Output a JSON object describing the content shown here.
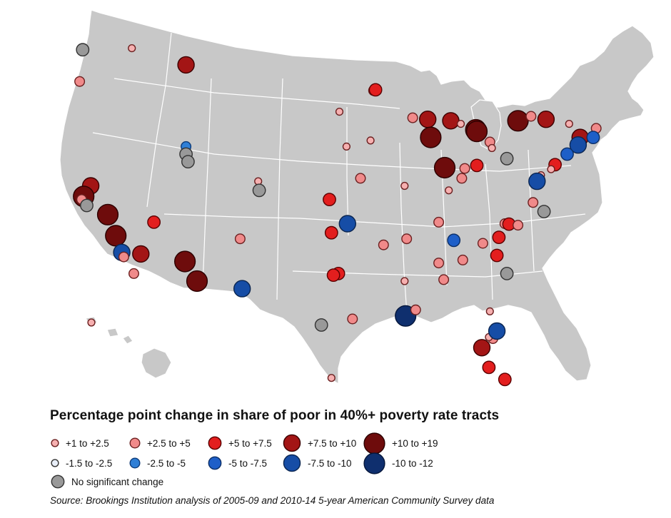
{
  "legend": {
    "title": "Percentage point change in share of poor in 40%+ poverty rate tracts",
    "items": [
      {
        "label": "+1 to +2.5",
        "fill": "#f6b0b0",
        "stroke": "#6b2020",
        "size": 2
      },
      {
        "label": "+2.5 to +5",
        "fill": "#f08a8a",
        "stroke": "#6b2020",
        "size": 4
      },
      {
        "label": "+5 to +7.5",
        "fill": "#e31e1e",
        "stroke": "#5a0000",
        "size": 6
      },
      {
        "label": "+7.5 to +10",
        "fill": "#a31515",
        "stroke": "#3a0000",
        "size": 9
      },
      {
        "label": "+10 to +19",
        "fill": "#6e0c0c",
        "stroke": "#2a0000",
        "size": 12
      },
      {
        "label": "-1.5 to -2.5",
        "fill": "#e8eef8",
        "stroke": "#333333",
        "size": 2
      },
      {
        "label": "-2.5 to -5",
        "fill": "#2f7fd6",
        "stroke": "#0c3b7a",
        "size": 4
      },
      {
        "label": "-5 to -7.5",
        "fill": "#1e5fc8",
        "stroke": "#0b2e66",
        "size": 6
      },
      {
        "label": "-7.5 to -10",
        "fill": "#164da6",
        "stroke": "#0a2550",
        "size": 9
      },
      {
        "label": "-10 to -12",
        "fill": "#0f2f6e",
        "stroke": "#05163a",
        "size": 12
      },
      {
        "label": "No significant change",
        "fill": "#999999",
        "stroke": "#333333",
        "size": 6
      }
    ]
  },
  "source": "Source: Brookings Institution analysis of 2005-09 and 2010-14 5-year American Community Survey data",
  "map": {
    "land_color": "#c8c8c8",
    "border_color": "#ffffff",
    "circles": [
      {
        "lon": -122.3,
        "lat": 47.6,
        "cat": 10
      },
      {
        "lon": -122.6,
        "lat": 45.5,
        "cat": 1
      },
      {
        "lon": -117.4,
        "lat": 47.7,
        "cat": 0
      },
      {
        "lon": -112.0,
        "lat": 46.6,
        "cat": 3
      },
      {
        "lon": -112.0,
        "lat": 41.2,
        "cat": 6
      },
      {
        "lon": -112.0,
        "lat": 40.7,
        "cat": 10
      },
      {
        "lon": -111.8,
        "lat": 40.2,
        "cat": 10
      },
      {
        "lon": -121.5,
        "lat": 38.6,
        "cat": 3
      },
      {
        "lon": -122.2,
        "lat": 37.9,
        "cat": 4
      },
      {
        "lon": -122.4,
        "lat": 37.7,
        "cat": 1
      },
      {
        "lon": -121.9,
        "lat": 37.3,
        "cat": 10
      },
      {
        "lon": -119.8,
        "lat": 36.7,
        "cat": 4
      },
      {
        "lon": -119.0,
        "lat": 35.3,
        "cat": 4
      },
      {
        "lon": -118.4,
        "lat": 34.2,
        "cat": 8
      },
      {
        "lon": -118.2,
        "lat": 33.9,
        "cat": 1
      },
      {
        "lon": -117.2,
        "lat": 32.8,
        "cat": 1
      },
      {
        "lon": -116.5,
        "lat": 34.1,
        "cat": 3
      },
      {
        "lon": -115.2,
        "lat": 36.2,
        "cat": 2
      },
      {
        "lon": -112.1,
        "lat": 33.6,
        "cat": 4
      },
      {
        "lon": -110.9,
        "lat": 32.3,
        "cat": 4
      },
      {
        "lon": -106.6,
        "lat": 35.1,
        "cat": 1
      },
      {
        "lon": -106.4,
        "lat": 31.8,
        "cat": 8
      },
      {
        "lon": -104.8,
        "lat": 38.9,
        "cat": 0
      },
      {
        "lon": -104.7,
        "lat": 38.3,
        "cat": 10
      },
      {
        "lon": -97.7,
        "lat": 37.7,
        "cat": 2
      },
      {
        "lon": -97.5,
        "lat": 35.5,
        "cat": 2
      },
      {
        "lon": -95.9,
        "lat": 36.1,
        "cat": 8
      },
      {
        "lon": -96.8,
        "lat": 32.8,
        "cat": 2
      },
      {
        "lon": -97.3,
        "lat": 32.7,
        "cat": 2
      },
      {
        "lon": -94.6,
        "lat": 39.1,
        "cat": 1
      },
      {
        "lon": -96.0,
        "lat": 41.2,
        "cat": 0
      },
      {
        "lon": -93.6,
        "lat": 41.6,
        "cat": 0
      },
      {
        "lon": -96.7,
        "lat": 43.5,
        "cat": 0
      },
      {
        "lon": -92.3,
        "lat": 34.7,
        "cat": 1
      },
      {
        "lon": -90.2,
        "lat": 38.6,
        "cat": 0
      },
      {
        "lon": -90.0,
        "lat": 35.1,
        "cat": 1
      },
      {
        "lon": -90.2,
        "lat": 32.3,
        "cat": 0
      },
      {
        "lon": -90.1,
        "lat": 30.0,
        "cat": 9
      },
      {
        "lon": -89.1,
        "lat": 30.4,
        "cat": 1
      },
      {
        "lon": -95.4,
        "lat": 29.8,
        "cat": 1
      },
      {
        "lon": -98.5,
        "lat": 29.4,
        "cat": 10
      },
      {
        "lon": -97.5,
        "lat": 25.9,
        "cat": 0
      },
      {
        "lon": -93.3,
        "lat": 44.9,
        "cat": 1
      },
      {
        "lon": -93.1,
        "lat": 44.95,
        "cat": 2
      },
      {
        "lon": -89.4,
        "lat": 43.1,
        "cat": 1
      },
      {
        "lon": -87.9,
        "lat": 43.0,
        "cat": 3
      },
      {
        "lon": -87.6,
        "lat": 41.8,
        "cat": 4
      },
      {
        "lon": -85.6,
        "lat": 42.9,
        "cat": 3
      },
      {
        "lon": -83.1,
        "lat": 42.3,
        "cat": 4
      },
      {
        "lon": -86.2,
        "lat": 39.8,
        "cat": 4
      },
      {
        "lon": -85.8,
        "lat": 38.3,
        "cat": 0
      },
      {
        "lon": -84.5,
        "lat": 39.1,
        "cat": 1
      },
      {
        "lon": -83.0,
        "lat": 39.95,
        "cat": 2
      },
      {
        "lon": -84.2,
        "lat": 39.75,
        "cat": 1
      },
      {
        "lon": -81.7,
        "lat": 41.5,
        "cat": 1
      },
      {
        "lon": -81.5,
        "lat": 41.1,
        "cat": 0
      },
      {
        "lon": -80.0,
        "lat": 40.4,
        "cat": 10
      },
      {
        "lon": -78.9,
        "lat": 42.9,
        "cat": 4
      },
      {
        "lon": -77.6,
        "lat": 43.2,
        "cat": 1
      },
      {
        "lon": -76.1,
        "lat": 43.0,
        "cat": 3
      },
      {
        "lon": -73.8,
        "lat": 42.7,
        "cat": 0
      },
      {
        "lon": -72.7,
        "lat": 41.8,
        "cat": 3
      },
      {
        "lon": -72.9,
        "lat": 41.3,
        "cat": 8
      },
      {
        "lon": -71.1,
        "lat": 42.4,
        "cat": 1
      },
      {
        "lon": -71.4,
        "lat": 41.8,
        "cat": 7
      },
      {
        "lon": -74.0,
        "lat": 40.7,
        "cat": 7
      },
      {
        "lon": -75.2,
        "lat": 40.0,
        "cat": 2
      },
      {
        "lon": -75.6,
        "lat": 39.7,
        "cat": 0
      },
      {
        "lon": -76.6,
        "lat": 39.3,
        "cat": 0
      },
      {
        "lon": -77.0,
        "lat": 38.9,
        "cat": 8
      },
      {
        "lon": -77.4,
        "lat": 37.5,
        "cat": 1
      },
      {
        "lon": -76.3,
        "lat": 36.9,
        "cat": 10
      },
      {
        "lon": -86.8,
        "lat": 36.2,
        "cat": 1
      },
      {
        "lon": -85.3,
        "lat": 35.0,
        "cat": 7
      },
      {
        "lon": -84.4,
        "lat": 33.7,
        "cat": 1
      },
      {
        "lon": -86.8,
        "lat": 33.5,
        "cat": 1
      },
      {
        "lon": -86.3,
        "lat": 32.4,
        "cat": 1
      },
      {
        "lon": -80.8,
        "lat": 35.2,
        "cat": 2
      },
      {
        "lon": -80.2,
        "lat": 36.1,
        "cat": 1
      },
      {
        "lon": -79.8,
        "lat": 36.07,
        "cat": 2
      },
      {
        "lon": -78.9,
        "lat": 36.0,
        "cat": 1
      },
      {
        "lon": -82.4,
        "lat": 34.8,
        "cat": 1
      },
      {
        "lon": -81.0,
        "lat": 34.0,
        "cat": 2
      },
      {
        "lon": -80.0,
        "lat": 32.8,
        "cat": 10
      },
      {
        "lon": -81.7,
        "lat": 30.3,
        "cat": 0
      },
      {
        "lon": -81.4,
        "lat": 28.5,
        "cat": 1
      },
      {
        "lon": -81.8,
        "lat": 28.6,
        "cat": 0
      },
      {
        "lon": -81.0,
        "lat": 29.0,
        "cat": 8
      },
      {
        "lon": -82.5,
        "lat": 27.9,
        "cat": 3
      },
      {
        "lon": -81.8,
        "lat": 26.6,
        "cat": 2
      },
      {
        "lon": -80.2,
        "lat": 25.8,
        "cat": 2
      },
      {
        "lon": -83.0,
        "lat": 42.2,
        "cat": 4
      },
      {
        "lon": -84.6,
        "lat": 42.7,
        "cat": 0
      },
      {
        "lon": -159.4,
        "lat": 21.98,
        "cat": 0
      }
    ]
  }
}
